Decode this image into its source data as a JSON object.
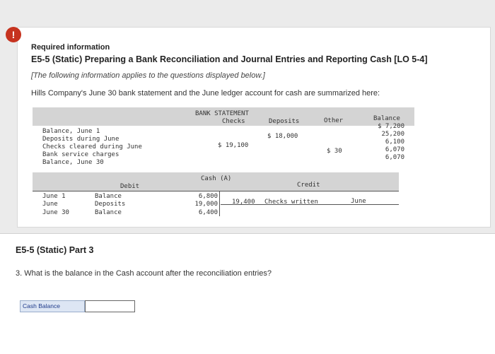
{
  "alert": {
    "icon": "!"
  },
  "header": {
    "required": "Required information",
    "title": "E5-5 (Static) Preparing a Bank Reconciliation and Journal Entries and Reporting Cash [LO 5-4]",
    "note": "[The following information applies to the questions displayed below.]",
    "intro": "Hills Company's June 30 bank statement and the June ledger account for cash are summarized here:"
  },
  "bank_statement": {
    "title": "BANK STATEMENT",
    "col_checks": "Checks",
    "col_deposits": "Deposits",
    "col_other": "Other",
    "col_balance": "Balance",
    "rows": [
      {
        "label": "Balance, June 1",
        "checks": "",
        "deposits": "",
        "other": "",
        "balance": "$ 7,200"
      },
      {
        "label": "Deposits during June",
        "checks": "",
        "deposits": "$ 18,000",
        "other": "",
        "balance": "25,200"
      },
      {
        "label": "Checks cleared during June",
        "checks": "$ 19,100",
        "deposits": "",
        "other": "",
        "balance": "6,100"
      },
      {
        "label": "Bank service charges",
        "checks": "",
        "deposits": "",
        "other": "$ 30",
        "balance": "6,070"
      },
      {
        "label": "Balance, June 30",
        "checks": "",
        "deposits": "",
        "other": "",
        "balance": "6,070"
      }
    ]
  },
  "ledger": {
    "title": "Cash (A)",
    "debit": "Debit",
    "credit": "Credit",
    "rows": [
      {
        "date": "June 1",
        "desc": "Balance",
        "amount": "6,800"
      },
      {
        "date": "June",
        "desc": "Deposits",
        "amount": "19,000"
      },
      {
        "date": "June 30",
        "desc": "Balance",
        "amount": "6,400"
      }
    ],
    "credit_amount": "19,400",
    "credit_desc": "Checks written",
    "credit_date": "June"
  },
  "part": {
    "title": "E5-5 (Static) Part 3",
    "question": "3. What is the balance in the Cash account after the reconciliation entries?",
    "cash_label": "Cash Balance",
    "cash_value": ""
  }
}
